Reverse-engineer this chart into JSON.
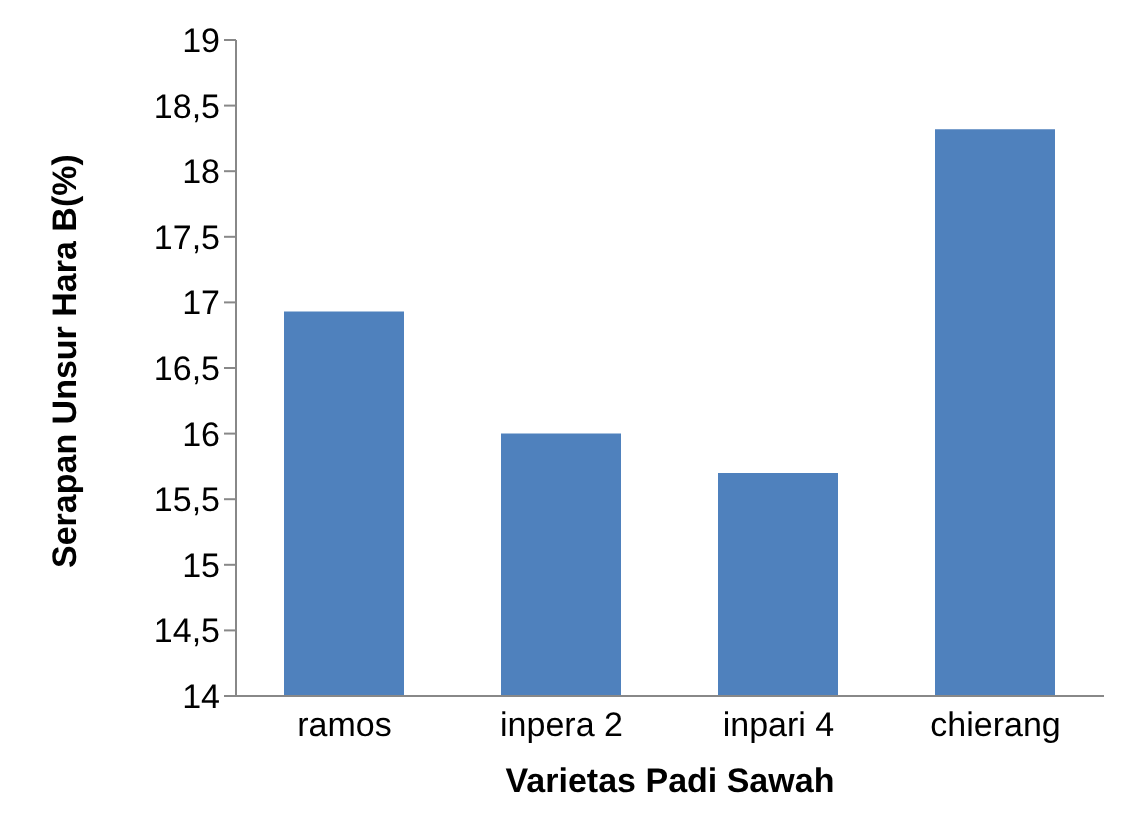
{
  "chart_data": {
    "type": "bar",
    "xlabel": "Varietas Padi Sawah",
    "ylabel": "Serapan Unsur Hara B(%)",
    "categories": [
      "ramos",
      "inpera 2",
      "inpari 4",
      "chierang"
    ],
    "values": [
      16.93,
      16.0,
      15.7,
      18.32
    ],
    "color": "#4f81bd",
    "ylim": [
      14,
      19
    ],
    "yticks": [
      14,
      {
        "value": 14.5,
        "label": "14,5"
      },
      15,
      {
        "value": 15.5,
        "label": "15,5"
      },
      16,
      {
        "value": 16.5,
        "label": "16,5"
      },
      17,
      {
        "value": 17.5,
        "label": "17,5"
      },
      18,
      {
        "value": 18.5,
        "label": "18,5"
      },
      19
    ],
    "grid": false
  }
}
